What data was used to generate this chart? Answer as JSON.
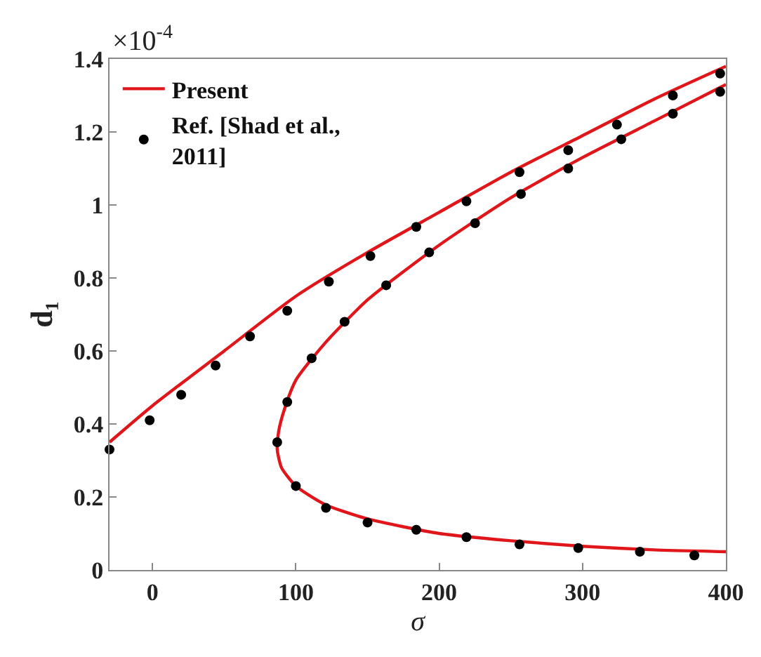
{
  "chart_data": {
    "type": "line",
    "xlabel": "σ",
    "ylabel": "d₁",
    "annotations": [
      "×10$^{-4}$"
    ],
    "xlim": [
      -30,
      400
    ],
    "xticks": [
      0,
      100,
      200,
      300,
      400
    ],
    "ylim": [
      0,
      1.4
    ],
    "yticks": [
      0,
      0.2,
      0.4,
      0.6,
      0.8,
      1,
      1.2,
      1.4
    ],
    "legend": "top left",
    "series": [
      {
        "name": "Present",
        "color": "#e0161b",
        "marker": "none",
        "line_style": "solid",
        "x": [
          -30,
          0,
          50,
          100,
          150,
          200,
          250,
          300,
          350,
          400
        ],
        "values": [
          0.35,
          0.45,
          0.6,
          0.75,
          0.87,
          0.98,
          1.09,
          1.19,
          1.29,
          1.38
        ]
      },
      {
        "color": "#e0161b",
        "marker": "none",
        "line_style": "solid",
        "x": [
          400,
          350,
          300,
          250,
          200,
          150,
          120,
          100,
          92,
          88,
          87,
          90,
          100,
          120,
          150,
          200,
          250,
          300,
          350,
          400
        ],
        "values": [
          1.33,
          1.23,
          1.13,
          1.02,
          0.89,
          0.74,
          0.62,
          0.52,
          0.44,
          0.38,
          0.33,
          0.28,
          0.23,
          0.18,
          0.14,
          0.1,
          0.08,
          0.065,
          0.055,
          0.05
        ]
      },
      {
        "name": "Ref. [Shad et al., 2011]",
        "type": "scatter",
        "color": "#000000",
        "marker": "circle",
        "x": [
          -30,
          -2,
          20,
          44,
          68,
          94,
          123,
          152,
          184,
          219,
          256,
          290,
          324,
          363,
          396,
          87,
          94,
          111,
          134,
          163,
          193,
          225,
          257,
          290,
          327,
          363,
          396,
          100,
          121,
          150,
          184,
          219,
          256,
          297,
          340,
          378
        ],
        "values": [
          0.33,
          0.41,
          0.48,
          0.56,
          0.64,
          0.71,
          0.79,
          0.86,
          0.94,
          1.01,
          1.09,
          1.15,
          1.22,
          1.3,
          1.36,
          0.35,
          0.46,
          0.58,
          0.68,
          0.78,
          0.87,
          0.95,
          1.03,
          1.1,
          1.18,
          1.25,
          1.31,
          0.23,
          0.17,
          0.13,
          0.11,
          0.09,
          0.07,
          0.06,
          0.05,
          0.04
        ]
      }
    ]
  }
}
